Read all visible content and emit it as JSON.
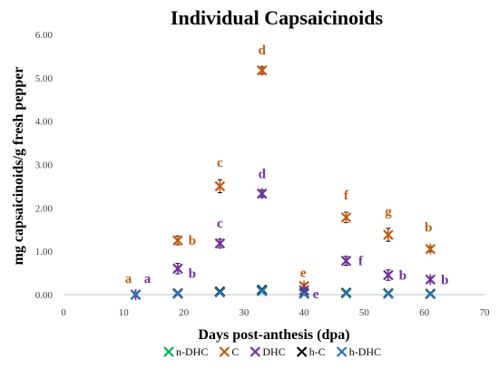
{
  "chart_data": {
    "type": "scatter",
    "title": "Individual Capsaicinoids",
    "xlabel": "Days post-anthesis (dpa)",
    "ylabel": "mg capsaicinoids/g fresh pepper",
    "xlim": [
      0,
      70
    ],
    "ylim": [
      0,
      6
    ],
    "x_ticks": [
      "0",
      "10",
      "20",
      "30",
      "40",
      "50",
      "60",
      "70"
    ],
    "y_ticks": [
      "0.00",
      "1.00",
      "2.00",
      "3.00",
      "4.00",
      "5.00",
      "6.00"
    ],
    "grid": false,
    "legend_position": "bottom",
    "series": [
      {
        "name": "n-DHC",
        "color": "#00b050",
        "marker": "x-cross",
        "x": [
          12,
          19,
          26,
          33,
          40,
          47,
          54,
          61
        ],
        "y": [
          0.0,
          0.03,
          0.07,
          0.12,
          0.03,
          0.05,
          0.03,
          0.02
        ]
      },
      {
        "name": "C",
        "color": "#c55a11",
        "marker": "asterisk",
        "x": [
          12,
          19,
          26,
          33,
          40,
          47,
          54,
          61
        ],
        "y": [
          0.0,
          1.25,
          2.5,
          5.17,
          0.2,
          1.78,
          1.38,
          1.05
        ],
        "err": [
          0,
          0.1,
          0.15,
          0.08,
          0.05,
          0.12,
          0.15,
          0.06
        ],
        "letters": [
          "a",
          "b",
          "c",
          "d",
          "e",
          "f",
          "g",
          "b"
        ]
      },
      {
        "name": "DHC",
        "color": "#7030a0",
        "marker": "asterisk",
        "x": [
          12,
          19,
          26,
          33,
          40,
          47,
          54,
          61
        ],
        "y": [
          0.0,
          0.6,
          1.18,
          2.33,
          0.1,
          0.78,
          0.45,
          0.35
        ],
        "err": [
          0,
          0.12,
          0.1,
          0.08,
          0.03,
          0.1,
          0.12,
          0.05
        ],
        "letters": [
          "a",
          "b",
          "c",
          "d",
          "e",
          "f",
          "b",
          "b"
        ]
      },
      {
        "name": "h-C",
        "color": "#000000",
        "marker": "x-cross",
        "x": [
          12,
          19,
          26,
          33,
          40,
          47,
          54,
          61
        ],
        "y": [
          0.0,
          0.03,
          0.07,
          0.1,
          0.03,
          0.04,
          0.03,
          0.02
        ]
      },
      {
        "name": "h-DHC",
        "color": "#2e75b6",
        "marker": "x-cross",
        "x": [
          12,
          19,
          26,
          33,
          40,
          47,
          54,
          61
        ],
        "y": [
          0.0,
          0.02,
          0.05,
          0.08,
          0.02,
          0.03,
          0.02,
          0.01
        ]
      }
    ]
  }
}
